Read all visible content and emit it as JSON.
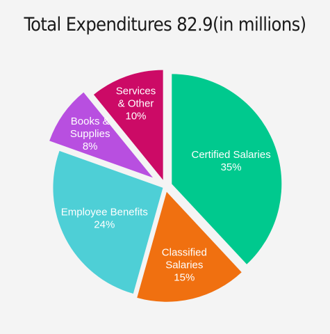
{
  "chart_data": {
    "type": "pie",
    "title": "Total Expenditures 82.9(in millions)",
    "start_angle_deg": -90,
    "exploded": true,
    "slices": [
      {
        "name": "Certified Salaries",
        "label_lines": [
          "Certified Salaries",
          "35%"
        ],
        "value": 35,
        "color": "#00c98e"
      },
      {
        "name": "Classified Salaries",
        "label_lines": [
          "Classified",
          "Salaries",
          "15%"
        ],
        "value": 15,
        "color": "#f07010"
      },
      {
        "name": "Employee Benefits",
        "label_lines": [
          "Employee Benefits",
          "24%"
        ],
        "value": 24,
        "color": "#4ecfd6"
      },
      {
        "name": "Books & Supplies",
        "label_lines": [
          "Books &",
          "Supplies",
          "8%"
        ],
        "value": 8,
        "color": "#b84fe0"
      },
      {
        "name": "Services & Other",
        "label_lines": [
          "Services",
          "& Other",
          "10%"
        ],
        "value": 10,
        "color": "#cc0a66"
      }
    ]
  }
}
